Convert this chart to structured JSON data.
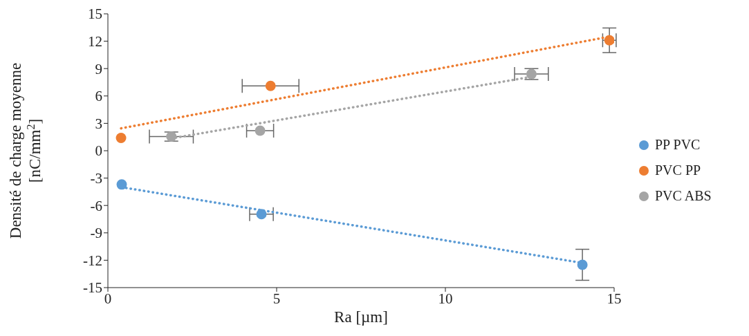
{
  "chart_data": {
    "type": "scatter",
    "xlabel": "Ra [µm]",
    "ylabel": "Densité de charge moyenne [nC/mm$^{2}$]",
    "xlim": [
      0,
      15
    ],
    "xticks": [
      0,
      5,
      10,
      15
    ],
    "ylim": [
      -15,
      15
    ],
    "yticks": [
      -15,
      -12,
      -9,
      -6,
      -3,
      0,
      3,
      6,
      9,
      12,
      15
    ],
    "grid": false,
    "legend": "right",
    "marker": "circle",
    "series": [
      {
        "name": "PP PVC",
        "color": "#5b9bd5",
        "x": [
          0.41,
          4.55,
          14.06
        ],
        "values": [
          -3.7,
          -6.95,
          -12.5
        ],
        "errors": [
          null,
          null,
          1.7
        ],
        "xerrors": [
          null,
          0.35,
          null
        ]
      },
      {
        "name": "PVC PP",
        "color": "#ed7d31",
        "x": [
          0.39,
          4.82,
          14.86
        ],
        "values": [
          1.4,
          7.1,
          12.1
        ],
        "errors": [
          null,
          null,
          1.35
        ],
        "xerrors": [
          null,
          0.84,
          0.2
        ]
      },
      {
        "name": "PVC ABS",
        "color": "#a5a5a5",
        "x": [
          1.88,
          4.51,
          12.55
        ],
        "values": [
          1.55,
          2.2,
          8.4
        ],
        "errors": [
          0.5,
          null,
          0.6
        ],
        "xerrors": [
          0.65,
          0.4,
          0.5
        ]
      },
      {
        "type": "line",
        "color": "#5b9bd5",
        "x": [
          0.41,
          14.06
        ],
        "values": [
          -4.0,
          -12.3
        ],
        "line_style": "dotted",
        "marker": "none"
      },
      {
        "type": "line",
        "color": "#ed7d31",
        "x": [
          0.39,
          14.86
        ],
        "values": [
          2.45,
          12.5
        ],
        "line_style": "dotted",
        "marker": "none"
      },
      {
        "type": "line",
        "color": "#a5a5a5",
        "x": [
          1.88,
          12.55
        ],
        "values": [
          1.35,
          8.1
        ],
        "line_style": "dotted",
        "marker": "none"
      }
    ]
  }
}
